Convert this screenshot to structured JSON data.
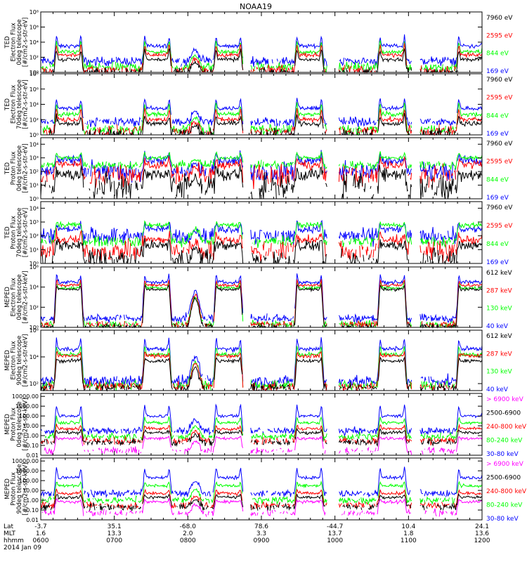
{
  "title": "NOAA19",
  "colors": {
    "blue": "#0000ff",
    "red": "#ff0000",
    "green": "#00ff00",
    "black": "#000000",
    "magenta": "#ff00ff"
  },
  "chart_data": [
    {
      "type": "line",
      "ylabel": [
        "TED",
        "Electron Flux",
        "0deg telescope",
        "[#/cm2-s-str-eV]"
      ],
      "ylog": true,
      "yrange": [
        1,
        100000000.0
      ],
      "ticks": [
        {
          "v": 1,
          "t": "10⁰"
        },
        {
          "v": 100,
          "t": "10²"
        },
        {
          "v": 10000,
          "t": "10⁴"
        },
        {
          "v": 1000000.0,
          "t": "10⁶"
        },
        {
          "v": 100000000.0,
          "t": "10⁸"
        }
      ],
      "legend": [
        {
          "label": "7960 eV",
          "color": "black"
        },
        {
          "label": "2595 eV",
          "color": "red"
        },
        {
          "label": "844 eV",
          "color": "green"
        },
        {
          "label": "169 eV",
          "color": "blue"
        }
      ],
      "series": [
        {
          "color": "blue",
          "base": 30,
          "peak": 3000,
          "spike": 100000,
          "noise": 0.5
        },
        {
          "color": "green",
          "base": 5,
          "peak": 500,
          "spike": 30000,
          "noise": 0.5
        },
        {
          "color": "red",
          "base": 2,
          "peak": 200,
          "spike": 10000,
          "noise": 0.5
        },
        {
          "color": "black",
          "base": 1,
          "peak": 50,
          "spike": 2000,
          "noise": 0.5
        }
      ]
    },
    {
      "type": "line",
      "ylabel": [
        "TED",
        "Electron Flux",
        "70deg telescope",
        "[#/cm2-s-str-eV]"
      ],
      "ylog": true,
      "yrange": [
        1,
        100000000.0
      ],
      "ticks": [
        {
          "v": 1,
          "t": "10⁰"
        },
        {
          "v": 100,
          "t": "10²"
        },
        {
          "v": 10000,
          "t": "10⁴"
        },
        {
          "v": 1000000.0,
          "t": "10⁶"
        },
        {
          "v": 100000000.0,
          "t": "10⁸"
        }
      ],
      "legend": [
        {
          "label": "7960 eV",
          "color": "black"
        },
        {
          "label": "2595 eV",
          "color": "red"
        },
        {
          "label": "844 eV",
          "color": "green"
        },
        {
          "label": "169 eV",
          "color": "blue"
        }
      ],
      "series": [
        {
          "color": "blue",
          "base": 50,
          "peak": 3000,
          "spike": 100000,
          "noise": 0.5
        },
        {
          "color": "green",
          "base": 5,
          "peak": 500,
          "spike": 20000,
          "noise": 0.6
        },
        {
          "color": "red",
          "base": 3,
          "peak": 100,
          "spike": 5000,
          "noise": 0.6
        },
        {
          "color": "black",
          "base": 1.5,
          "peak": 30,
          "spike": 500,
          "noise": 0.6
        }
      ]
    },
    {
      "type": "line",
      "ylabel": [
        "TED",
        "Proton Flux",
        "0deg telescope",
        "[#/cm2-s-str-eV]"
      ],
      "ylog": true,
      "yrange": [
        1,
        30000
      ],
      "ticks": [
        {
          "v": 1,
          "t": "10⁰"
        },
        {
          "v": 10,
          "t": "10¹"
        },
        {
          "v": 100,
          "t": "10²"
        },
        {
          "v": 1000,
          "t": "10³"
        },
        {
          "v": 10000,
          "t": "10⁴"
        }
      ],
      "legend": [
        {
          "label": "7960 eV",
          "color": "black"
        },
        {
          "label": "2595 eV",
          "color": "red"
        },
        {
          "label": "844 eV",
          "color": "green"
        },
        {
          "label": "169 eV",
          "color": "blue"
        }
      ],
      "series": [
        {
          "color": "blue",
          "base": 100,
          "peak": 600,
          "spike": 3000,
          "noise": 0.6
        },
        {
          "color": "green",
          "base": 300,
          "peak": 1000,
          "spike": 3000,
          "noise": 0.25
        },
        {
          "color": "red",
          "base": 50,
          "peak": 300,
          "spike": 1000,
          "noise": 0.6
        },
        {
          "color": "black",
          "base": 8,
          "peak": 60,
          "spike": 200,
          "noise": 0.9
        }
      ]
    },
    {
      "type": "line",
      "ylabel": [
        "TED",
        "Proton Flux",
        "70deg telescope",
        "[#/cm2-s-str-eV]"
      ],
      "ylog": true,
      "yrange": [
        1,
        30000
      ],
      "ticks": [
        {
          "v": 1,
          "t": "10⁰"
        },
        {
          "v": 10,
          "t": "10¹"
        },
        {
          "v": 100,
          "t": "10²"
        },
        {
          "v": 1000,
          "t": "10³"
        },
        {
          "v": 10000,
          "t": "10⁴"
        }
      ],
      "legend": [
        {
          "label": "7960 eV",
          "color": "black"
        },
        {
          "label": "2595 eV",
          "color": "red"
        },
        {
          "label": "844 eV",
          "color": "green"
        },
        {
          "label": "169 eV",
          "color": "blue"
        }
      ],
      "series": [
        {
          "color": "blue",
          "base": 100,
          "peak": 300,
          "spike": 1000,
          "noise": 0.5
        },
        {
          "color": "green",
          "base": 40,
          "peak": 600,
          "spike": 1000,
          "noise": 0.35
        },
        {
          "color": "red",
          "base": 8,
          "peak": 50,
          "spike": 200,
          "noise": 0.6
        },
        {
          "color": "black",
          "base": 2,
          "peak": 20,
          "spike": 50,
          "noise": 0.7
        }
      ]
    },
    {
      "type": "line",
      "ylabel": [
        "MEPED",
        "Electron Flux",
        "0deg telescope",
        "[#/cm2-s-str-keV]"
      ],
      "ylog": true,
      "yrange": [
        1,
        1000000.0
      ],
      "ticks": [
        {
          "v": 1,
          "t": "10⁰"
        },
        {
          "v": 100,
          "t": "10²"
        },
        {
          "v": 10000,
          "t": "10⁴"
        },
        {
          "v": 1000000.0,
          "t": "10⁶"
        }
      ],
      "legend": [
        {
          "label": "612 keV",
          "color": "black"
        },
        {
          "label": "287 keV",
          "color": "red"
        },
        {
          "label": "130 keV",
          "color": "green"
        },
        {
          "label": "40 keV",
          "color": "blue"
        }
      ],
      "series": [
        {
          "color": "blue",
          "base": 8,
          "peak": 30000,
          "spike": 300000,
          "noise": 0.35
        },
        {
          "color": "green",
          "base": 2,
          "peak": 8000,
          "spike": 50000,
          "noise": 0.3
        },
        {
          "color": "red",
          "base": 2,
          "peak": 15000,
          "spike": 80000,
          "noise": 0.3
        },
        {
          "color": "black",
          "base": 1.2,
          "peak": 6000,
          "spike": 20000,
          "noise": 0.25
        }
      ]
    },
    {
      "type": "line",
      "ylabel": [
        "MEPED",
        "Electron Flux",
        "90deg telescope",
        "[#/cm2-s-str-keV]"
      ],
      "ylog": true,
      "yrange": [
        30,
        1000000.0
      ],
      "ticks": [
        {
          "v": 100,
          "t": "10²"
        },
        {
          "v": 10000,
          "t": "10⁴"
        },
        {
          "v": 1000000.0,
          "t": "10⁶"
        }
      ],
      "legend": [
        {
          "label": "612 keV",
          "color": "black"
        },
        {
          "label": "287 keV",
          "color": "red"
        },
        {
          "label": "130 keV",
          "color": "green"
        },
        {
          "label": "40 keV",
          "color": "blue"
        }
      ],
      "series": [
        {
          "color": "blue",
          "base": 150,
          "peak": 40000,
          "spike": 400000,
          "noise": 0.35
        },
        {
          "color": "green",
          "base": 80,
          "peak": 15000,
          "spike": 100000,
          "noise": 0.3
        },
        {
          "color": "red",
          "base": 60,
          "peak": 12000,
          "spike": 30000,
          "noise": 0.3
        },
        {
          "color": "black",
          "base": 50,
          "peak": 5000,
          "spike": 10000,
          "noise": 0.25
        }
      ]
    },
    {
      "type": "line",
      "ylabel": [
        "MEPED",
        "Proton Flux",
        "0deg telescope",
        "[#/cm2-s-str-keV]"
      ],
      "ylog": true,
      "yrange": [
        0.01,
        20000
      ],
      "ticks": [
        {
          "v": 0.01,
          "t": "0.01"
        },
        {
          "v": 0.1,
          "t": "0.10"
        },
        {
          "v": 1,
          "t": "1.00"
        },
        {
          "v": 10,
          "t": "10.00"
        },
        {
          "v": 100,
          "t": "100.00"
        },
        {
          "v": 1000,
          "t": "1000.00"
        },
        {
          "v": 10000,
          "t": "10000.00"
        }
      ],
      "legend": [
        {
          "label": "> 6900 keV",
          "color": "magenta"
        },
        {
          "label": "2500-6900",
          "color": "black"
        },
        {
          "label": "240-800 keV",
          "color": "red"
        },
        {
          "label": "80-240 keV",
          "color": "green"
        },
        {
          "label": "30-80 keV",
          "color": "blue"
        }
      ],
      "series": [
        {
          "color": "blue",
          "base": 3,
          "peak": 100,
          "spike": 2000,
          "noise": 0.3
        },
        {
          "color": "green",
          "base": 0.8,
          "peak": 20,
          "spike": 100,
          "noise": 0.3
        },
        {
          "color": "red",
          "base": 0.3,
          "peak": 5,
          "spike": 15,
          "noise": 0.3
        },
        {
          "color": "black",
          "base": 0.2,
          "peak": 2,
          "spike": 5,
          "noise": 0.3
        },
        {
          "color": "magenta",
          "base": 0.03,
          "peak": 0.5,
          "spike": 1,
          "noise": 0.3
        }
      ]
    },
    {
      "type": "line",
      "ylabel": [
        "MEPED",
        "Proton Flux",
        "90deg telescope",
        "[#/cm2-s-str-keV]"
      ],
      "ylog": true,
      "yrange": [
        0.01,
        20000
      ],
      "ticks": [
        {
          "v": 0.01,
          "t": "0.01"
        },
        {
          "v": 0.1,
          "t": "0.10"
        },
        {
          "v": 1,
          "t": "1.00"
        },
        {
          "v": 10,
          "t": "10.00"
        },
        {
          "v": 100,
          "t": "100.00"
        },
        {
          "v": 1000,
          "t": "1000.00"
        },
        {
          "v": 10000,
          "t": "10000.00"
        }
      ],
      "legend": [
        {
          "label": "> 6900 keV",
          "color": "magenta"
        },
        {
          "label": "2500-6900",
          "color": "black"
        },
        {
          "label": "240-800 keV",
          "color": "red"
        },
        {
          "label": "80-240 keV",
          "color": "green"
        },
        {
          "label": "30-80 keV",
          "color": "blue"
        }
      ],
      "series": [
        {
          "color": "blue",
          "base": 5,
          "peak": 200,
          "spike": 3000,
          "noise": 0.3
        },
        {
          "color": "green",
          "base": 1,
          "peak": 30,
          "spike": 100,
          "noise": 0.3
        },
        {
          "color": "red",
          "base": 0.3,
          "peak": 5,
          "spike": 15,
          "noise": 0.3
        },
        {
          "color": "black",
          "base": 0.2,
          "peak": 2,
          "spike": 5,
          "noise": 0.3
        },
        {
          "color": "magenta",
          "base": 0.05,
          "peak": 0.7,
          "spike": 1.5,
          "noise": 0.3
        }
      ]
    }
  ],
  "passes": [
    0.38,
    1.58,
    2.55,
    3.65,
    4.78,
    5.85,
    6.95
  ],
  "shallow_pass": 2.1,
  "gaps": [
    [
      2.75,
      2.85
    ],
    [
      3.9,
      4.05
    ],
    [
      5.05,
      5.15
    ],
    [
      6.12,
      6.2
    ]
  ],
  "x_axis": {
    "range_hours": [
      0,
      6
    ],
    "label_rows": [
      "Lat",
      "MLT",
      "hhmm"
    ],
    "ticks": [
      {
        "hour": 0,
        "lat": "-3.7",
        "mlt": "1.6",
        "hhmm": "0600"
      },
      {
        "hour": 1,
        "lat": "35.1",
        "mlt": "13.3",
        "hhmm": "0700"
      },
      {
        "hour": 2,
        "lat": "-68.0",
        "mlt": "2.0",
        "hhmm": "0800"
      },
      {
        "hour": 3,
        "lat": "78.6",
        "mlt": "3.3",
        "hhmm": "0900"
      },
      {
        "hour": 4,
        "lat": "-44.7",
        "mlt": "13.7",
        "hhmm": "1000"
      },
      {
        "hour": 5,
        "lat": "10.4",
        "mlt": "1.8",
        "hhmm": "1100"
      },
      {
        "hour": 6,
        "lat": "24.1",
        "mlt": "13.6",
        "hhmm": "1200"
      }
    ],
    "date": "2014 Jan 09"
  }
}
